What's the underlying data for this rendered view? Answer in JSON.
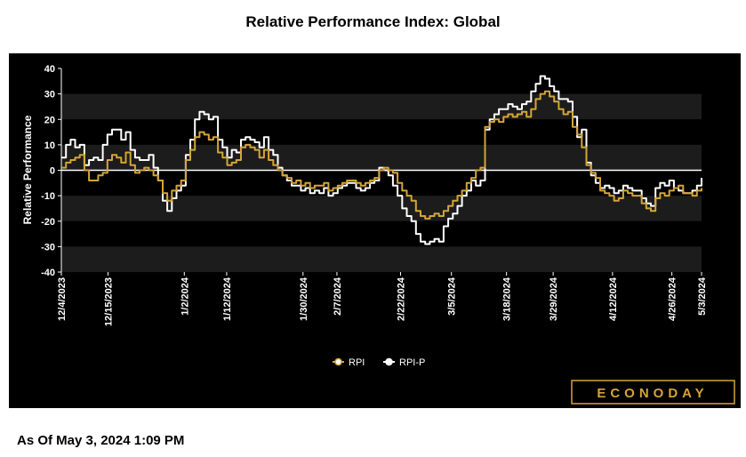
{
  "title": "Relative Performance Index: Global",
  "footer_text": "As Of May 3, 2024 1:09 PM",
  "logo_text": "ECONODAY",
  "chart_data": {
    "type": "line",
    "title": "Relative Performance Index: Global",
    "ylabel": "Relative Performance",
    "xlabel": "",
    "ylim": [
      -40,
      40
    ],
    "yticks": [
      40,
      30,
      20,
      10,
      0,
      -10,
      -20,
      -30,
      -40
    ],
    "x_start": "12/4/2023",
    "x_end": "5/3/2024",
    "xticks": [
      "12/4/2023",
      "12/15/2023",
      "1/2/2024",
      "1/12/2024",
      "1/30/2024",
      "2/7/2024",
      "2/22/2024",
      "3/5/2024",
      "3/18/2024",
      "3/29/2024",
      "4/12/2024",
      "4/26/2024",
      "5/3/2024"
    ],
    "legend_position": "bottom-center",
    "colors": {
      "background": "#000000",
      "band": "#1c1c1c",
      "zero_line": "#ffffff",
      "axis_text": "#ffffff",
      "RPI": "#d4a537",
      "RPI-P": "#ffffff"
    },
    "series": [
      {
        "name": "RPI",
        "color": "#d4a537",
        "values": [
          1,
          3,
          4,
          5,
          6,
          0,
          -4,
          -4,
          -2,
          -1,
          4,
          6,
          5,
          3,
          7,
          2,
          -1,
          0,
          1,
          0,
          -2,
          -4,
          -9,
          -12,
          -8,
          -6,
          -4,
          4,
          8,
          13,
          15,
          14,
          12,
          13,
          7,
          5,
          2,
          3,
          4,
          9,
          10,
          9,
          8,
          5,
          8,
          4,
          2,
          0,
          -2,
          -3,
          -5,
          -4,
          -6,
          -5,
          -7,
          -6,
          -6,
          -5,
          -8,
          -7,
          -6,
          -5,
          -4,
          -4,
          -5,
          -6,
          -5,
          -4,
          -3,
          0,
          1,
          0,
          -1,
          -5,
          -8,
          -10,
          -12,
          -16,
          -18,
          -19,
          -18,
          -17,
          -18,
          -16,
          -14,
          -12,
          -10,
          -8,
          -5,
          -3,
          0,
          1,
          17,
          19,
          20,
          19,
          21,
          22,
          21,
          22,
          23,
          21,
          24,
          28,
          30,
          31,
          29,
          27,
          24,
          22,
          23,
          17,
          14,
          9,
          2,
          -1,
          -3,
          -8,
          -9,
          -10,
          -12,
          -11,
          -8,
          -9,
          -10,
          -10,
          -13,
          -15,
          -16,
          -11,
          -9,
          -10,
          -8,
          -7,
          -6,
          -9,
          -9,
          -10,
          -8,
          -7
        ],
        "points": 140
      },
      {
        "name": "RPI-P",
        "color": "#ffffff",
        "values": [
          5,
          10,
          12,
          9,
          10,
          2,
          4,
          5,
          4,
          10,
          14,
          16,
          16,
          12,
          15,
          8,
          5,
          4,
          4,
          6,
          1,
          -4,
          -12,
          -16,
          -11,
          -8,
          -6,
          6,
          12,
          20,
          23,
          22,
          20,
          21,
          12,
          9,
          5,
          8,
          7,
          12,
          13,
          12,
          11,
          9,
          13,
          8,
          6,
          1,
          -2,
          -4,
          -6,
          -6,
          -8,
          -7,
          -9,
          -8,
          -9,
          -7,
          -10,
          -9,
          -7,
          -6,
          -5,
          -5,
          -7,
          -8,
          -7,
          -5,
          -4,
          1,
          0,
          -2,
          -6,
          -10,
          -15,
          -18,
          -20,
          -25,
          -28,
          -29,
          -28,
          -27,
          -28,
          -22,
          -19,
          -17,
          -14,
          -10,
          -8,
          -4,
          -6,
          -4,
          16,
          20,
          22,
          24,
          24,
          26,
          25,
          24,
          26,
          27,
          31,
          34,
          37,
          36,
          33,
          31,
          28,
          28,
          27,
          21,
          13,
          16,
          3,
          -2,
          -5,
          -7,
          -6,
          -7,
          -9,
          -8,
          -6,
          -7,
          -8,
          -8,
          -11,
          -13,
          -14,
          -7,
          -5,
          -6,
          -4,
          -7,
          -8,
          -9,
          -9,
          -8,
          -6,
          -3
        ]
      }
    ]
  }
}
